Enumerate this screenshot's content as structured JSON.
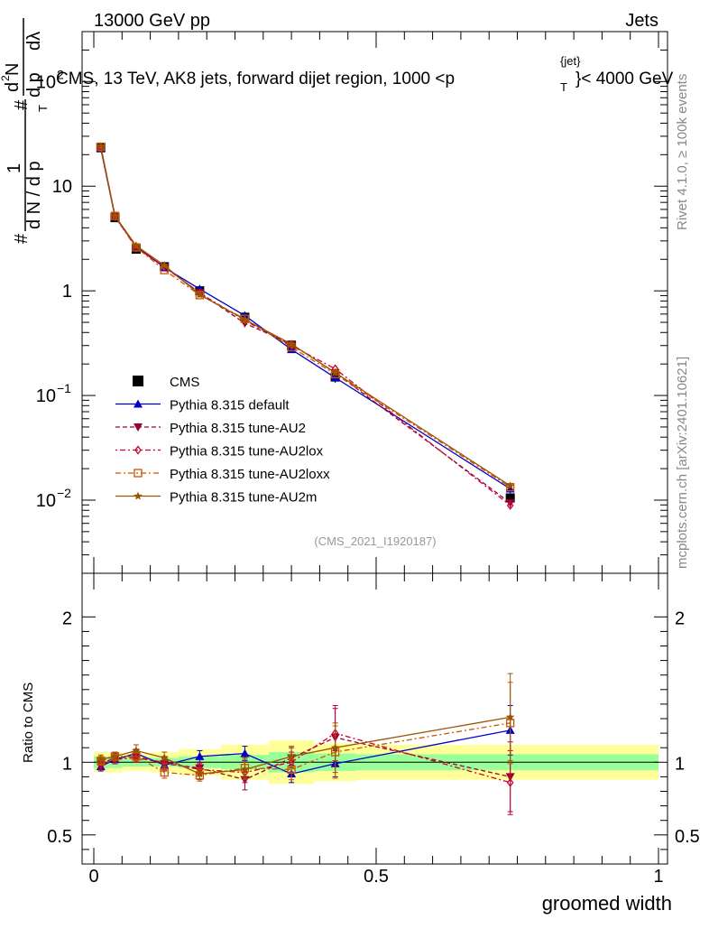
{
  "header": {
    "left": "13000 GeV pp",
    "right": "Jets"
  },
  "top_title": "CMS, 13 TeV, AK8 jets, forward dijet region, 1000 <p",
  "top_title_sup": "{jet}",
  "top_title_sub": "T",
  "top_title_end": "}< 4000 GeV",
  "ylabel_top": {
    "hash1": "#",
    "one": "1",
    "dN": "d N / d p",
    "t_sub": "T",
    "hash2": "#",
    "d2N": "d",
    "two": "2",
    "N": "N",
    "dpT": "d p",
    "dlam": "dλ",
    "hash3": "#"
  },
  "side_rivet": "Rivet 4.1.0, ≥ 100k events",
  "side_mcplots": "mcplots.cern.ch [arXiv:2401.10621]",
  "analysis_id": "(CMS_2021_I1920187)",
  "xlabel": "groomed width",
  "ratio_ylabel": "Ratio to CMS",
  "legend": [
    {
      "label": "CMS",
      "color": "#000000",
      "marker": "square"
    },
    {
      "label": "Pythia 8.315 default",
      "color": "#0000cc",
      "marker": "triangle-up"
    },
    {
      "label": "Pythia 8.315 tune-AU2",
      "color": "#990033",
      "marker": "triangle-down"
    },
    {
      "label": "Pythia 8.315 tune-AU2lox",
      "color": "#cc0033",
      "marker": "diamond"
    },
    {
      "label": "Pythia 8.315 tune-AU2loxx",
      "color": "#cc5500",
      "marker": "square-open"
    },
    {
      "label": "Pythia 8.315 tune-AU2m",
      "color": "#995500",
      "marker": "star"
    }
  ],
  "chart_data": [
    {
      "type": "line",
      "title": "CMS, 13 TeV, AK8 jets, forward dijet region, 1000 < pT{jet} < 4000 GeV",
      "xlabel": "groomed width",
      "ylabel": "1/N dN/dpT d2N/dpT dlambda",
      "yscale": "log",
      "xlim": [
        0,
        1
      ],
      "ylim": [
        0.002,
        300
      ],
      "x": [
        0.0125,
        0.0375,
        0.075,
        0.125,
        0.1875,
        0.2675,
        0.35,
        0.4275,
        0.7375
      ],
      "xerr": [
        0.0125,
        0.0125,
        0.025,
        0.025,
        0.0375,
        0.0425,
        0.04,
        0.0375,
        0.2625
      ],
      "series": [
        {
          "name": "CMS",
          "values": [
            23.5,
            5.0,
            2.5,
            1.7,
            1.0,
            0.56,
            0.3,
            0.15,
            0.0105
          ],
          "errors": [
            1.5,
            0.3,
            0.15,
            0.1,
            0.06,
            0.04,
            0.025,
            0.018,
            0.002
          ]
        },
        {
          "name": "Pythia 8.315 default",
          "values": [
            22.8,
            5.1,
            2.65,
            1.67,
            1.04,
            0.58,
            0.275,
            0.148,
            0.0128
          ]
        },
        {
          "name": "Pythia 8.315 tune-AU2",
          "values": [
            23.2,
            5.15,
            2.6,
            1.68,
            0.96,
            0.49,
            0.31,
            0.165,
            0.0094
          ]
        },
        {
          "name": "Pythia 8.315 tune-AU2lox",
          "values": [
            23.0,
            5.1,
            2.58,
            1.7,
            0.95,
            0.52,
            0.3,
            0.18,
            0.0089
          ]
        },
        {
          "name": "Pythia 8.315 tune-AU2loxx",
          "values": [
            23.8,
            5.2,
            2.6,
            1.58,
            0.91,
            0.54,
            0.29,
            0.16,
            0.0133
          ]
        },
        {
          "name": "Pythia 8.315 tune-AU2m",
          "values": [
            24.0,
            5.2,
            2.7,
            1.75,
            0.92,
            0.53,
            0.31,
            0.165,
            0.0137
          ]
        }
      ],
      "yticks": [
        "10^{-2}",
        "10^{-1}",
        "1",
        "10",
        "10^{2}"
      ]
    },
    {
      "type": "line",
      "title": "",
      "xlabel": "groomed width",
      "ylabel": "Ratio to CMS",
      "xlim": [
        0,
        1
      ],
      "ylim": [
        0.3,
        2.3
      ],
      "yticks": [
        0.5,
        1,
        2
      ],
      "xticks": [
        0,
        0.5,
        1
      ],
      "x": [
        0.0125,
        0.0375,
        0.075,
        0.125,
        0.1875,
        0.2675,
        0.35,
        0.4275,
        0.7375
      ],
      "band_edges": [
        0,
        0.025,
        0.05,
        0.1,
        0.15,
        0.225,
        0.31,
        0.39,
        0.465,
        1.0
      ],
      "green_band": [
        0.04,
        0.04,
        0.03,
        0.03,
        0.04,
        0.05,
        0.07,
        0.06,
        0.055
      ],
      "yellow_band": [
        0.07,
        0.07,
        0.06,
        0.07,
        0.09,
        0.12,
        0.15,
        0.13,
        0.12
      ],
      "series": [
        {
          "name": "Pythia 8.315 default",
          "values": [
            0.97,
            1.02,
            1.06,
            0.98,
            1.04,
            1.06,
            0.92,
            0.99,
            1.22
          ],
          "errors": [
            0.03,
            0.03,
            0.03,
            0.04,
            0.04,
            0.05,
            0.06,
            0.09,
            0.17
          ]
        },
        {
          "name": "Pythia 8.315 tune-AU2",
          "values": [
            0.99,
            1.03,
            1.04,
            0.99,
            0.96,
            0.88,
            1.03,
            1.17,
            0.9
          ],
          "errors": [
            0.03,
            0.03,
            0.03,
            0.04,
            0.04,
            0.07,
            0.07,
            0.2,
            0.24
          ]
        },
        {
          "name": "Pythia 8.315 tune-AU2lox",
          "values": [
            0.98,
            1.02,
            1.03,
            1.0,
            0.95,
            0.93,
            1.0,
            1.2,
            0.86
          ],
          "errors": [
            0.03,
            0.03,
            0.03,
            0.04,
            0.04,
            0.07,
            0.07,
            0.19,
            0.22
          ]
        },
        {
          "name": "Pythia 8.315 tune-AU2loxx",
          "values": [
            1.01,
            1.04,
            1.04,
            0.93,
            0.91,
            0.96,
            0.95,
            1.07,
            1.27
          ],
          "errors": [
            0.03,
            0.03,
            0.03,
            0.04,
            0.04,
            0.07,
            0.07,
            0.18,
            0.28
          ]
        },
        {
          "name": "Pythia 8.315 tune-AU2m",
          "values": [
            1.02,
            1.04,
            1.08,
            1.03,
            0.92,
            0.95,
            1.04,
            1.1,
            1.31
          ],
          "errors": [
            0.03,
            0.03,
            0.04,
            0.04,
            0.04,
            0.07,
            0.07,
            0.17,
            0.3
          ]
        }
      ]
    }
  ]
}
